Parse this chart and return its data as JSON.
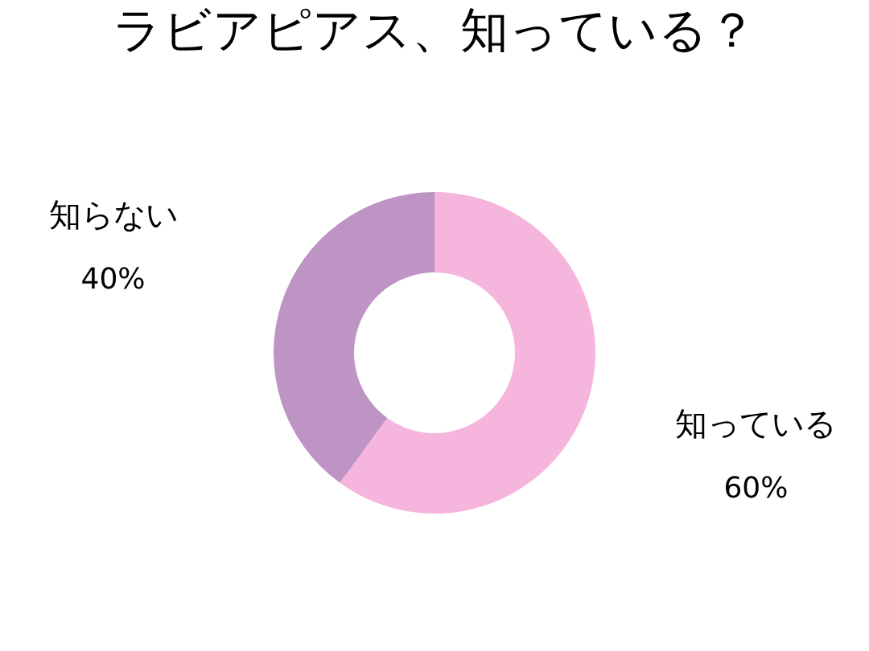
{
  "chart_data": {
    "type": "donut",
    "title": "ラビアピアス、知っている？",
    "categories": [
      "知っている",
      "知らない"
    ],
    "values": [
      60,
      40
    ],
    "colors": [
      "#f5b5dc",
      "#bd94c4"
    ],
    "value_labels": [
      "60%",
      "40%"
    ],
    "legend": false
  }
}
